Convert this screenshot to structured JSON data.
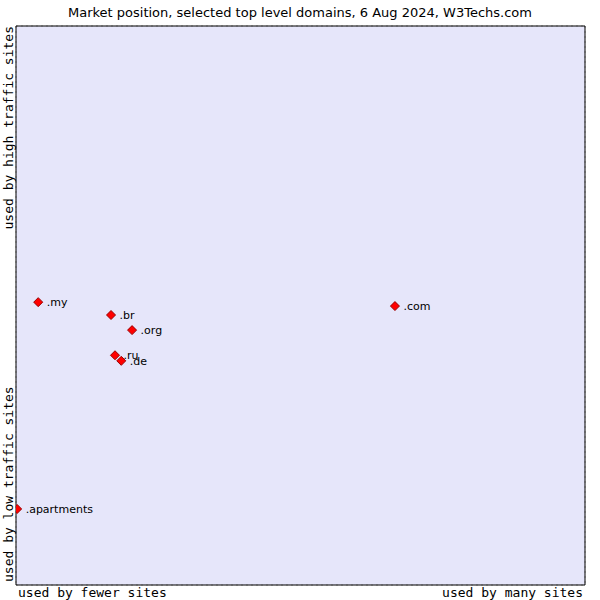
{
  "chart_data": {
    "type": "scatter",
    "title": "Market position, selected top level domains, 6 Aug 2024, W3Techs.com",
    "x_axis_labels": [
      "used by fewer sites",
      "used by many sites"
    ],
    "y_axis_labels": [
      "used by low traffic sites",
      "used by high traffic sites"
    ],
    "points": [
      {
        "name": ".my",
        "x": 0.39,
        "y": 5.06
      },
      {
        "name": ".br",
        "x": 1.67,
        "y": 4.83
      },
      {
        "name": ".org",
        "x": 2.04,
        "y": 4.56
      },
      {
        "name": ".ru",
        "x": 1.74,
        "y": 4.11
      },
      {
        "name": ".de",
        "x": 1.85,
        "y": 4.01
      },
      {
        "name": ".com",
        "x": 6.66,
        "y": 4.99
      },
      {
        "name": ".apartments",
        "x": 0.02,
        "y": 1.36
      }
    ],
    "xlim": [
      0,
      10
    ],
    "ylim": [
      0,
      10
    ],
    "xticks": [
      0,
      1,
      2,
      3,
      4,
      5,
      6,
      7,
      8,
      9,
      10
    ],
    "yticks": [
      0,
      1,
      2,
      3,
      4,
      5,
      6,
      7,
      8,
      9,
      10
    ],
    "grid": true,
    "tick_labels": false,
    "color": "#ff0000",
    "marker": "diamond"
  }
}
